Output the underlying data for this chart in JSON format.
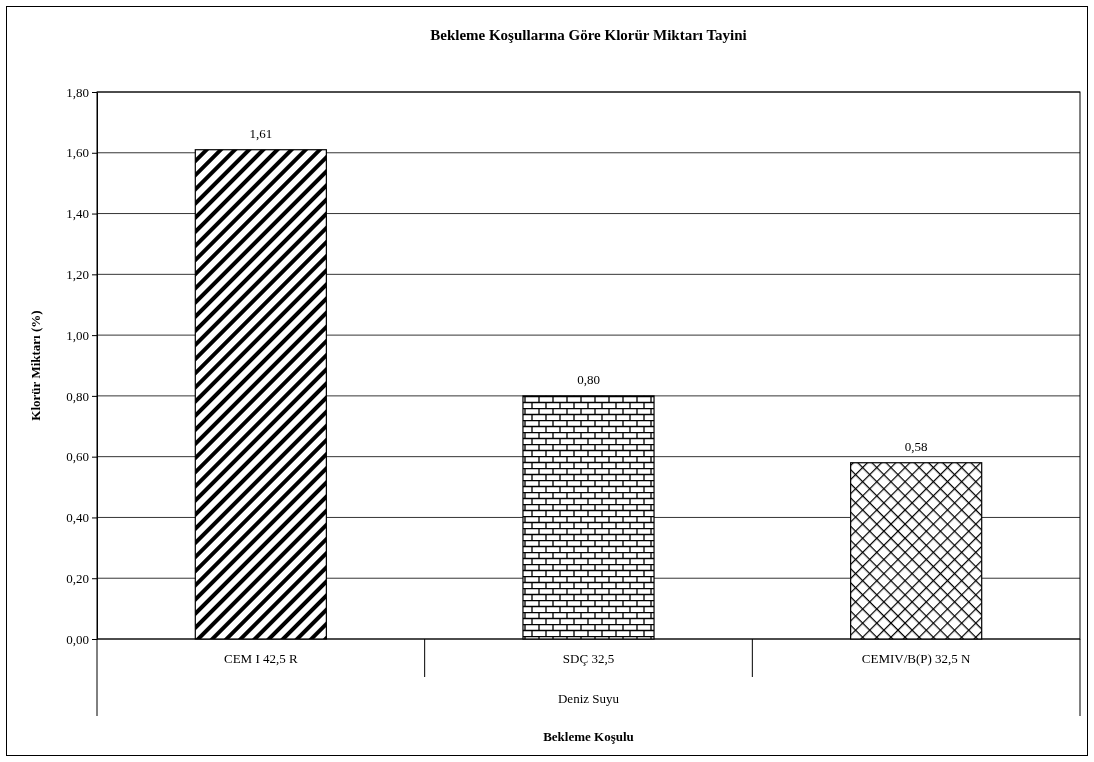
{
  "chart_data": {
    "type": "bar",
    "title": "Bekleme Koşullarına Göre Klorür Miktarı Tayini",
    "xlabel": "Bekleme Koşulu",
    "ylabel": "Klorür Miktarı (%)",
    "categories": [
      "CEM I 42,5 R",
      "SDÇ 32,5",
      "CEMIV/B(P) 32,5 N"
    ],
    "values": [
      1.61,
      0.8,
      0.58
    ],
    "value_labels": [
      "1,61",
      "0,80",
      "0,58"
    ],
    "colors": [
      "#000000",
      "#000000",
      "#000000"
    ],
    "annotations": [
      "Deniz Suyu"
    ],
    "ylim": [
      0,
      1.8
    ],
    "yticks": [
      {
        "value": 0,
        "label": "0,00"
      },
      {
        "value": 0.2,
        "label": "0,20"
      },
      {
        "value": 0.4,
        "label": "0,40"
      },
      {
        "value": 0.6,
        "label": "0,60"
      },
      {
        "value": 0.8,
        "label": "0,80"
      },
      {
        "value": 1,
        "label": "1,00"
      },
      {
        "value": 1.2,
        "label": "1,20"
      },
      {
        "value": 1.4,
        "label": "1,40"
      },
      {
        "value": 1.6,
        "label": "1,60"
      },
      {
        "value": 1.8,
        "label": "1,80"
      }
    ],
    "grid": "y"
  }
}
